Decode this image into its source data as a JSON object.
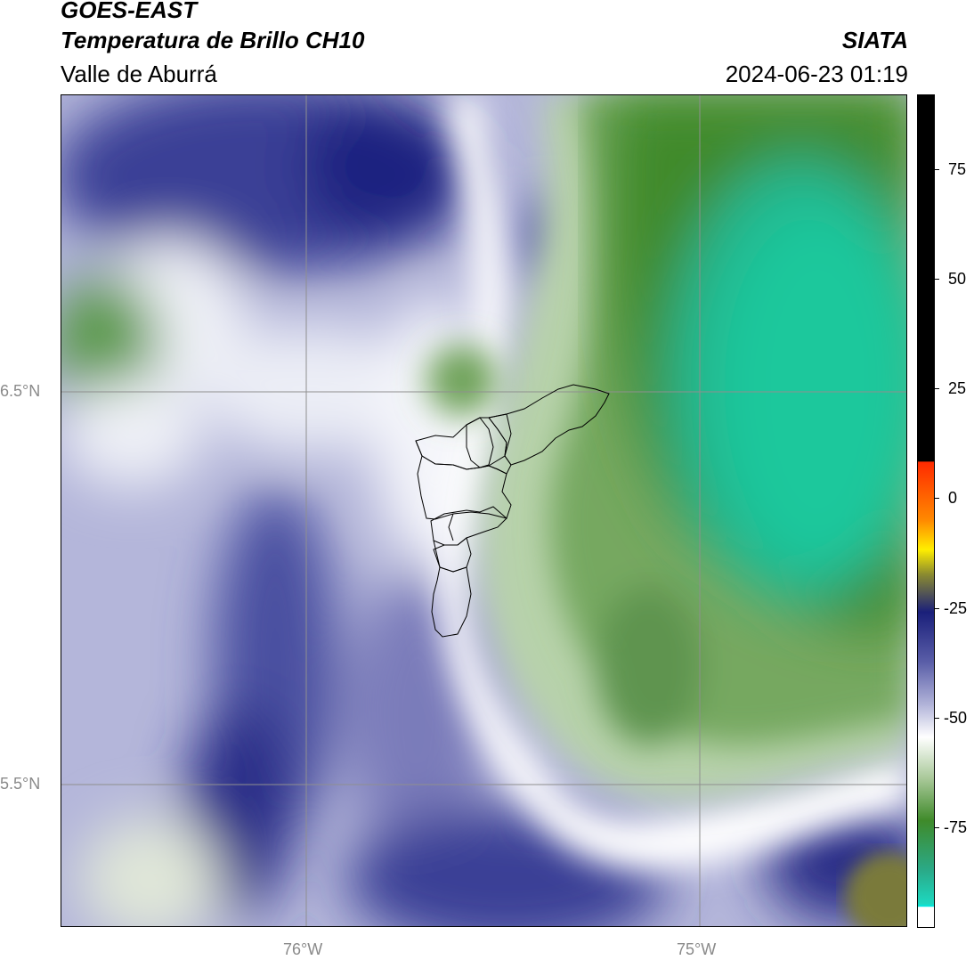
{
  "header": {
    "satellite": "GOES-EAST",
    "product": "Temperatura de Brillo CH10",
    "region": "Valle de Aburrá",
    "agency": "SIATA",
    "datetime": "2024-06-23 01:19"
  },
  "map": {
    "lat_labels": [
      "6.5°N",
      "5.5°N"
    ],
    "lon_labels": [
      "76°W",
      "75°W"
    ]
  },
  "colorbar": {
    "ticks": [
      "75",
      "50",
      "25",
      "0",
      "-25",
      "-50",
      "-75"
    ],
    "colors": {
      "warm_black": "#000000",
      "red": "#ff2a00",
      "orange": "#ff8a00",
      "yellow": "#ffee00",
      "olive": "#8a8a30",
      "navy": "#1a1f7a",
      "lavender": "#9a9ccc",
      "white": "#ffffff",
      "green": "#3f8a2a",
      "cyan": "#1dd8c0"
    }
  }
}
